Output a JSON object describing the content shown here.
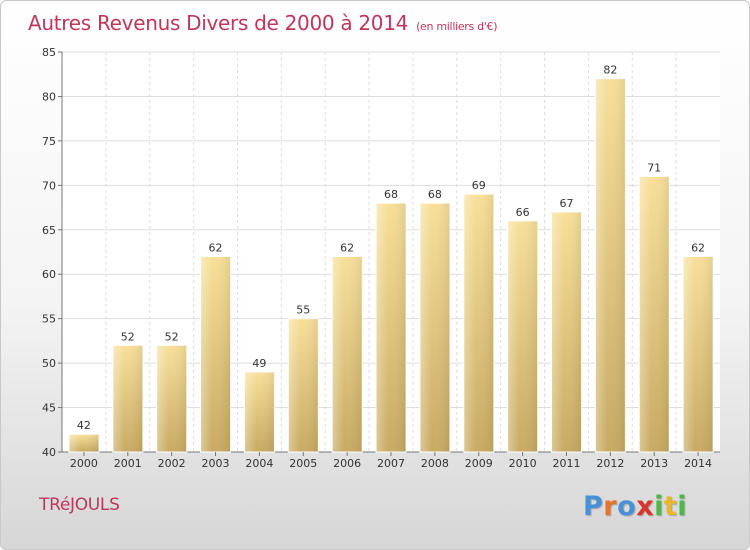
{
  "chart_data": {
    "type": "bar",
    "title": "Autres Revenus Divers de 2000 à 2014",
    "unit_label": "(en milliers d'€)",
    "categories": [
      "2000",
      "2001",
      "2002",
      "2003",
      "2004",
      "2005",
      "2006",
      "2007",
      "2008",
      "2009",
      "2010",
      "2011",
      "2012",
      "2013",
      "2014"
    ],
    "values": [
      42,
      52,
      52,
      62,
      49,
      55,
      62,
      68,
      68,
      69,
      66,
      67,
      82,
      71,
      62
    ],
    "ylim": [
      40,
      85
    ],
    "yticks": [
      40,
      45,
      50,
      55,
      60,
      65,
      70,
      75,
      80,
      85
    ],
    "grid": true,
    "bar_color": "#e8cf86",
    "grid_color": "#dddddd"
  },
  "footer": {
    "town": "TRéJOULS",
    "logo": [
      "P",
      "r",
      "o",
      "x",
      "i",
      "t",
      "i"
    ],
    "logo_colors": [
      "#4a90d9",
      "#e8732a",
      "#4a90d9",
      "#d9342b",
      "#4db848",
      "#e8b82a",
      "#4db848"
    ]
  },
  "colors": {
    "title": "#c0365a"
  }
}
